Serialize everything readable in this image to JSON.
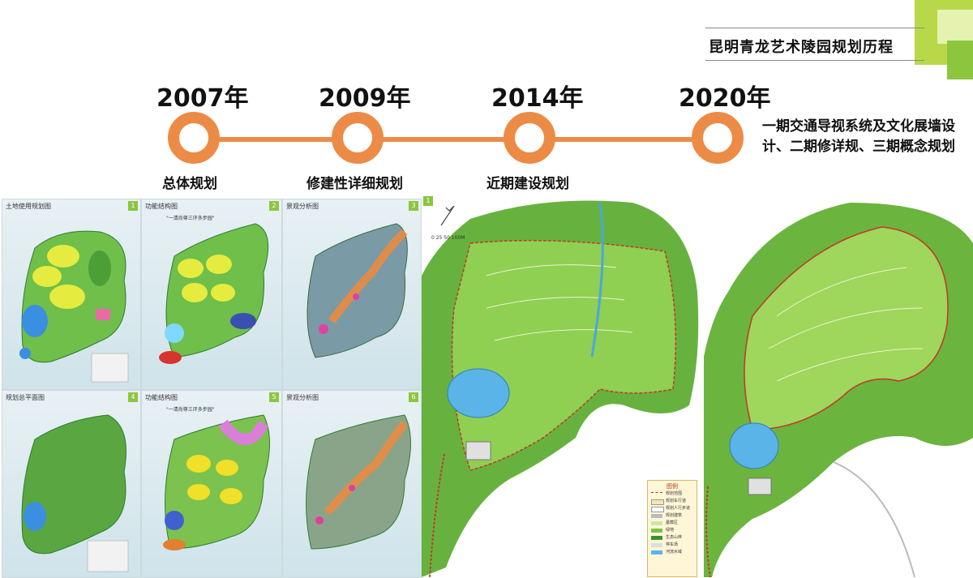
{
  "header": {
    "title": "昆明青龙艺术陵园规划历程"
  },
  "timeline": [
    {
      "year": "2007年",
      "label": "总体规划"
    },
    {
      "year": "2009年",
      "label": "修建性详细规划"
    },
    {
      "year": "2014年",
      "label": "近期建设规划"
    },
    {
      "year": "2020年",
      "description": "一期交通导视系统及文化展墙设计、二期修详规、三期概念规划"
    }
  ],
  "colors": {
    "accent": "#ec8b46",
    "brand_green": "#8cc63f"
  },
  "thumbnails": [
    {
      "number": "1",
      "title": "土地使用规划图"
    },
    {
      "number": "2",
      "title": "功能结构图",
      "slogan": "\"一清尚尊三环多步园\""
    },
    {
      "number": "3",
      "title": "景观分析图"
    },
    {
      "number": "4",
      "title": "规划总平面图"
    },
    {
      "number": "5",
      "title": "功能结构图",
      "slogan": "\"一清尚尊三环多步园\""
    },
    {
      "number": "6",
      "title": "景观分析图"
    }
  ],
  "big_map": {
    "number": "1",
    "scale": "0  25  50      100M"
  },
  "legend": {
    "title": "图例",
    "items": [
      "规划范围",
      "规划车行道",
      "规划人行步道",
      "规划建筑",
      "墓葬区",
      "绿地",
      "生态山林",
      "停车场",
      "河流水域"
    ]
  }
}
